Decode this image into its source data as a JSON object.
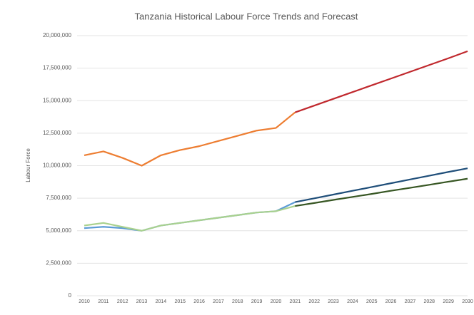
{
  "chart_data": {
    "type": "line",
    "title": "Tanzania Historical Labour Force Trends and  Forecast",
    "y_label": "Labour Force",
    "categories": [
      "2010",
      "2011",
      "2012",
      "2013",
      "2014",
      "2015",
      "2016",
      "2017",
      "2018",
      "2019",
      "2020",
      "2021",
      "2022",
      "2023",
      "2024",
      "2025",
      "2026",
      "2027",
      "2028",
      "2029",
      "2030"
    ],
    "ylim": [
      0,
      20000000
    ],
    "yticks": [
      {
        "value": 0,
        "label": "0"
      },
      {
        "value": 2500000,
        "label": "2,500,000"
      },
      {
        "value": 5000000,
        "label": "5,000,000"
      },
      {
        "value": 7500000,
        "label": "7,500,000"
      },
      {
        "value": 10000000,
        "label": "10,000,000"
      },
      {
        "value": 12500000,
        "label": "12,500,000"
      },
      {
        "value": 15000000,
        "label": "15,000,000"
      },
      {
        "value": 17500000,
        "label": "17,500,000"
      },
      {
        "value": 20000000,
        "label": "20,000,000"
      }
    ],
    "grid": true,
    "series": [
      {
        "color": "#ed7d31",
        "values": [
          10800000,
          11100000,
          10600000,
          10000000,
          10800000,
          11200000,
          11500000,
          11900000,
          12300000,
          12700000,
          12900000,
          14100000,
          null,
          null,
          null,
          null,
          null,
          null,
          null,
          null,
          null
        ]
      },
      {
        "color": "#c0282d",
        "values": [
          null,
          null,
          null,
          null,
          null,
          null,
          null,
          null,
          null,
          null,
          null,
          14100000,
          14620000,
          15140000,
          15660000,
          16180000,
          16700000,
          17220000,
          17740000,
          18260000,
          18800000
        ]
      },
      {
        "color": "#5b9bd5",
        "values": [
          5200000,
          5300000,
          5200000,
          5000000,
          5400000,
          5600000,
          5800000,
          6000000,
          6200000,
          6400000,
          6500000,
          7200000,
          null,
          null,
          null,
          null,
          null,
          null,
          null,
          null,
          null
        ]
      },
      {
        "color": "#1f4e79",
        "values": [
          null,
          null,
          null,
          null,
          null,
          null,
          null,
          null,
          null,
          null,
          null,
          7200000,
          7490000,
          7780000,
          8070000,
          8360000,
          8650000,
          8940000,
          9230000,
          9520000,
          9800000
        ]
      },
      {
        "color": "#a9d18e",
        "values": [
          5400000,
          5600000,
          5300000,
          5000000,
          5400000,
          5600000,
          5800000,
          6000000,
          6200000,
          6400000,
          6500000,
          6900000,
          null,
          null,
          null,
          null,
          null,
          null,
          null,
          null,
          null
        ]
      },
      {
        "color": "#375623",
        "values": [
          null,
          null,
          null,
          null,
          null,
          null,
          null,
          null,
          null,
          null,
          null,
          6900000,
          7130000,
          7370000,
          7600000,
          7830000,
          8070000,
          8300000,
          8530000,
          8770000,
          9000000
        ]
      }
    ]
  }
}
